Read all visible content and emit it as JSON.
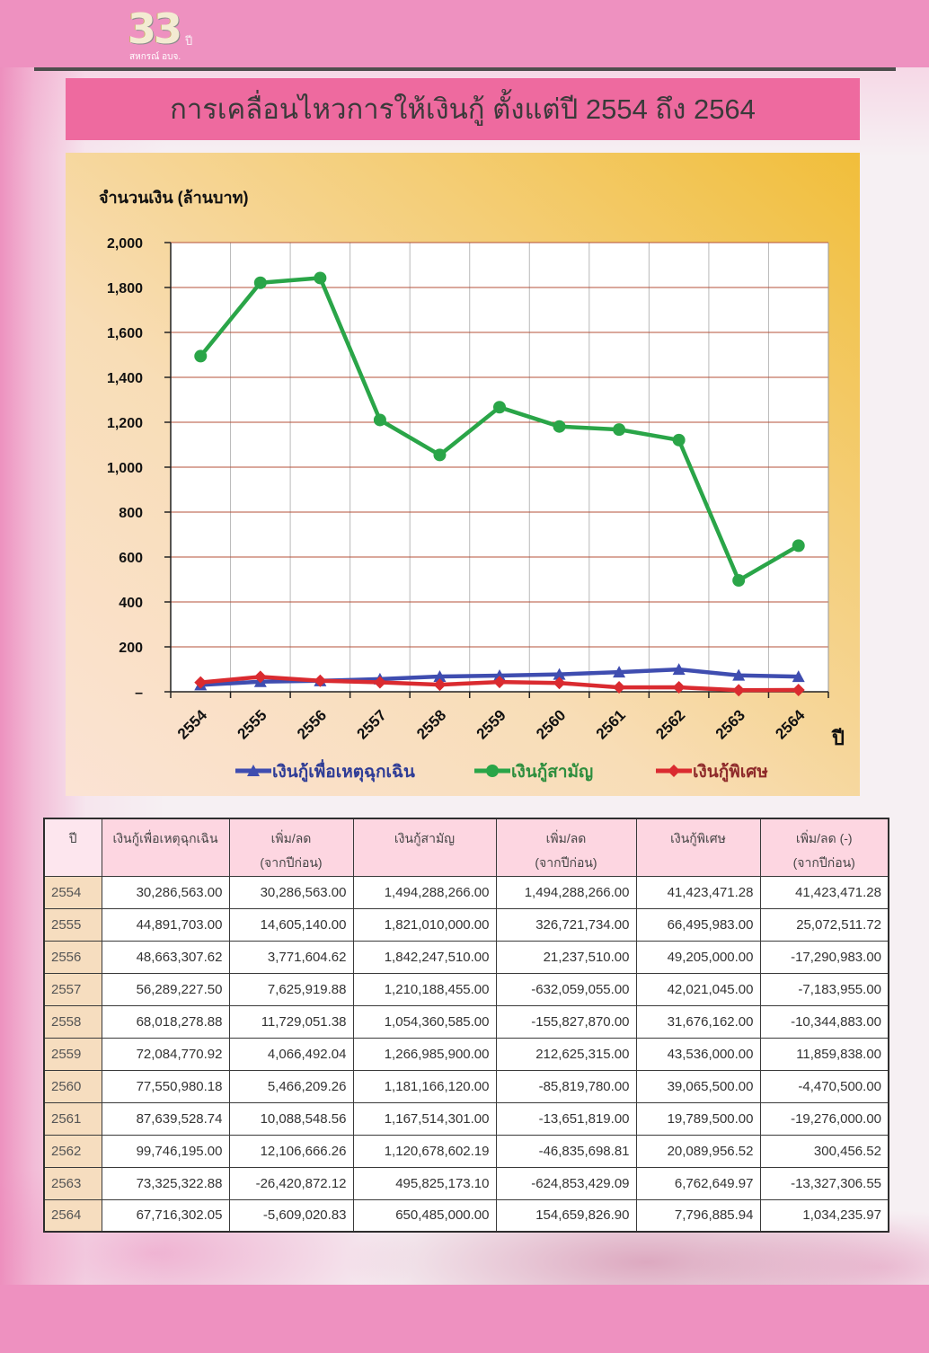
{
  "header": {
    "logo_number": "33",
    "logo_suffix": "ปี",
    "logo_caption": "สหกรณ์ อบจ."
  },
  "chart_data": {
    "type": "line",
    "title": "การเคลื่อนไหวการให้เงินกู้ ตั้งแต่ปี 2554 ถึง 2564",
    "xlabel": "ปี",
    "ylabel": "จำนวนเงิน (ล้านบาท)",
    "categories": [
      "2554",
      "2555",
      "2556",
      "2557",
      "2558",
      "2559",
      "2560",
      "2561",
      "2562",
      "2563",
      "2564"
    ],
    "ylim": [
      0,
      2000
    ],
    "y_ticks": [
      0,
      200,
      400,
      600,
      800,
      1000,
      1200,
      1400,
      1600,
      1800,
      2000
    ],
    "y_tick_labels": [
      "–",
      "200",
      "400",
      "600",
      "800",
      "1,000",
      "1,200",
      "1,400",
      "1,600",
      "1,800",
      "2,000"
    ],
    "grid": true,
    "legend_position": "bottom",
    "series": [
      {
        "name": "เงินกู้เพื่อเหตุฉุกเฉิน",
        "color": "#3F4DB0",
        "label_color": "#2E3C96",
        "marker": "triangle",
        "values": [
          30.29,
          44.89,
          48.66,
          56.29,
          68.02,
          72.08,
          77.55,
          87.64,
          99.75,
          73.33,
          67.72
        ]
      },
      {
        "name": "เงินกู้สามัญ",
        "color": "#2AA548",
        "label_color": "#2E8E3E",
        "marker": "circle",
        "values": [
          1494.29,
          1821.01,
          1842.25,
          1210.19,
          1054.36,
          1266.99,
          1181.17,
          1167.51,
          1120.68,
          495.83,
          650.49
        ]
      },
      {
        "name": "เงินกู้พิเศษ",
        "color": "#DA2B30",
        "label_color": "#8E2A2A",
        "marker": "diamond",
        "values": [
          41.42,
          66.5,
          49.21,
          42.02,
          31.68,
          43.54,
          39.07,
          19.79,
          20.09,
          6.76,
          7.8
        ]
      }
    ]
  },
  "table": {
    "headers": [
      {
        "line1": "ปี"
      },
      {
        "line1": "เงินกู้เพื่อเหตุฉุกเฉิน"
      },
      {
        "line1": "เพิ่ม/ลด",
        "line2": "(จากปีก่อน)"
      },
      {
        "line1": "เงินกู้สามัญ"
      },
      {
        "line1": "เพิ่ม/ลด",
        "line2": "(จากปีก่อน)"
      },
      {
        "line1": "เงินกู้พิเศษ"
      },
      {
        "line1": "เพิ่ม/ลด (-)",
        "line2": "(จากปีก่อน)"
      }
    ],
    "rows": [
      {
        "year": "2554",
        "values": [
          "30,286,563.00",
          "30,286,563.00",
          "1,494,288,266.00",
          "1,494,288,266.00",
          "41,423,471.28",
          "41,423,471.28"
        ]
      },
      {
        "year": "2555",
        "values": [
          "44,891,703.00",
          "14,605,140.00",
          "1,821,010,000.00",
          "326,721,734.00",
          "66,495,983.00",
          "25,072,511.72"
        ]
      },
      {
        "year": "2556",
        "values": [
          "48,663,307.62",
          "3,771,604.62",
          "1,842,247,510.00",
          "21,237,510.00",
          "49,205,000.00",
          "-17,290,983.00"
        ]
      },
      {
        "year": "2557",
        "values": [
          "56,289,227.50",
          "7,625,919.88",
          "1,210,188,455.00",
          "-632,059,055.00",
          "42,021,045.00",
          "-7,183,955.00"
        ]
      },
      {
        "year": "2558",
        "values": [
          "68,018,278.88",
          "11,729,051.38",
          "1,054,360,585.00",
          "-155,827,870.00",
          "31,676,162.00",
          "-10,344,883.00"
        ]
      },
      {
        "year": "2559",
        "values": [
          "72,084,770.92",
          "4,066,492.04",
          "1,266,985,900.00",
          "212,625,315.00",
          "43,536,000.00",
          "11,859,838.00"
        ]
      },
      {
        "year": "2560",
        "values": [
          "77,550,980.18",
          "5,466,209.26",
          "1,181,166,120.00",
          "-85,819,780.00",
          "39,065,500.00",
          "-4,470,500.00"
        ]
      },
      {
        "year": "2561",
        "values": [
          "87,639,528.74",
          "10,088,548.56",
          "1,167,514,301.00",
          "-13,651,819.00",
          "19,789,500.00",
          "-19,276,000.00"
        ]
      },
      {
        "year": "2562",
        "values": [
          "99,746,195.00",
          "12,106,666.26",
          "1,120,678,602.19",
          "-46,835,698.81",
          "20,089,956.52",
          "300,456.52"
        ]
      },
      {
        "year": "2563",
        "values": [
          "73,325,322.88",
          "-26,420,872.12",
          "495,825,173.10",
          "-624,853,429.09",
          "6,762,649.97",
          "-13,327,306.55"
        ]
      },
      {
        "year": "2564",
        "values": [
          "67,716,302.05",
          "-5,609,020.83",
          "650,485,000.00",
          "154,659,826.90",
          "7,796,885.94",
          "1,034,235.97"
        ]
      }
    ]
  }
}
